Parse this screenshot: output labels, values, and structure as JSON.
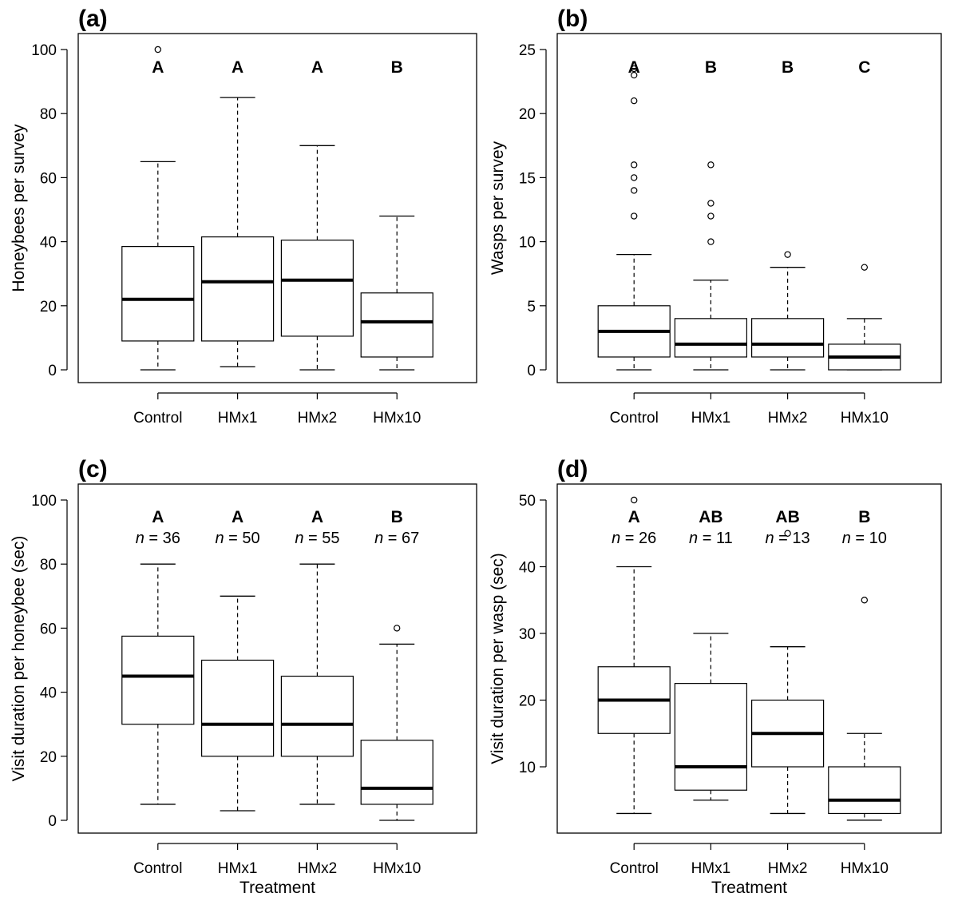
{
  "xlabel_shared": "Treatment",
  "chart_data": [
    {
      "type": "box",
      "panel_label": "(a)",
      "title": "",
      "xlabel": "",
      "ylabel": "Honeybees per survey",
      "ylim": [
        0,
        100
      ],
      "yticks": [
        0,
        20,
        40,
        60,
        80,
        100
      ],
      "categories": [
        "Control",
        "HMx1",
        "HMx2",
        "HMx10"
      ],
      "boxes": [
        {
          "whisker_low": 0,
          "q1": 9,
          "median": 22,
          "q3": 38.5,
          "whisker_high": 65,
          "outliers": [
            100
          ],
          "letter": "A"
        },
        {
          "whisker_low": 1,
          "q1": 9,
          "median": 27.5,
          "q3": 41.5,
          "whisker_high": 85,
          "outliers": [],
          "letter": "A"
        },
        {
          "whisker_low": 0,
          "q1": 10.5,
          "median": 28,
          "q3": 40.5,
          "whisker_high": 70,
          "outliers": [],
          "letter": "A"
        },
        {
          "whisker_low": 0,
          "q1": 4,
          "median": 15,
          "q3": 24,
          "whisker_high": 48,
          "outliers": [],
          "letter": "B"
        }
      ]
    },
    {
      "type": "box",
      "panel_label": "(b)",
      "title": "",
      "xlabel": "",
      "ylabel": "Wasps per survey",
      "ylim": [
        0,
        25
      ],
      "yticks": [
        0,
        5,
        10,
        15,
        20,
        25
      ],
      "categories": [
        "Control",
        "HMx1",
        "HMx2",
        "HMx10"
      ],
      "boxes": [
        {
          "whisker_low": 0,
          "q1": 1,
          "median": 3,
          "q3": 5,
          "whisker_high": 9,
          "outliers": [
            12,
            14,
            15,
            16,
            21,
            23,
            23.5
          ],
          "letter": "A"
        },
        {
          "whisker_low": 0,
          "q1": 1,
          "median": 2,
          "q3": 4,
          "whisker_high": 7,
          "outliers": [
            10,
            12,
            13,
            16
          ],
          "letter": "B"
        },
        {
          "whisker_low": 0,
          "q1": 1,
          "median": 2,
          "q3": 4,
          "whisker_high": 8,
          "outliers": [
            9
          ],
          "letter": "B"
        },
        {
          "whisker_low": 0,
          "q1": 0,
          "median": 1,
          "q3": 2,
          "whisker_high": 4,
          "outliers": [
            8
          ],
          "letter": "C"
        }
      ]
    },
    {
      "type": "box",
      "panel_label": "(c)",
      "title": "",
      "xlabel": "Treatment",
      "ylabel": "Visit duration per honeybee (sec)",
      "ylim": [
        0,
        100
      ],
      "yticks": [
        0,
        20,
        40,
        60,
        80,
        100
      ],
      "categories": [
        "Control",
        "HMx1",
        "HMx2",
        "HMx10"
      ],
      "boxes": [
        {
          "whisker_low": 5,
          "q1": 30,
          "median": 45,
          "q3": 57.5,
          "whisker_high": 80,
          "outliers": [],
          "letter": "A",
          "n": "36"
        },
        {
          "whisker_low": 3,
          "q1": 20,
          "median": 30,
          "q3": 50,
          "whisker_high": 70,
          "outliers": [],
          "letter": "A",
          "n": "50"
        },
        {
          "whisker_low": 5,
          "q1": 20,
          "median": 30,
          "q3": 45,
          "whisker_high": 80,
          "outliers": [],
          "letter": "A",
          "n": "55"
        },
        {
          "whisker_low": 0,
          "q1": 5,
          "median": 10,
          "q3": 25,
          "whisker_high": 55,
          "outliers": [
            60
          ],
          "letter": "B",
          "n": "67"
        }
      ]
    },
    {
      "type": "box",
      "panel_label": "(d)",
      "title": "",
      "xlabel": "Treatment",
      "ylabel": "Visit duration per wasp (sec)",
      "ylim": [
        2,
        50
      ],
      "yticks": [
        10,
        20,
        30,
        40,
        50
      ],
      "categories": [
        "Control",
        "HMx1",
        "HMx2",
        "HMx10"
      ],
      "boxes": [
        {
          "whisker_low": 3,
          "q1": 15,
          "median": 20,
          "q3": 25,
          "whisker_high": 40,
          "outliers": [
            50
          ],
          "letter": "A",
          "n": "26"
        },
        {
          "whisker_low": 5,
          "q1": 6.5,
          "median": 10,
          "q3": 22.5,
          "whisker_high": 30,
          "outliers": [],
          "letter": "AB",
          "n": "11"
        },
        {
          "whisker_low": 3,
          "q1": 10,
          "median": 15,
          "q3": 20,
          "whisker_high": 28,
          "outliers": [
            45
          ],
          "letter": "AB",
          "n": "13"
        },
        {
          "whisker_low": 2,
          "q1": 3,
          "median": 5,
          "q3": 10,
          "whisker_high": 15,
          "outliers": [
            35
          ],
          "letter": "B",
          "n": "10"
        }
      ]
    }
  ]
}
